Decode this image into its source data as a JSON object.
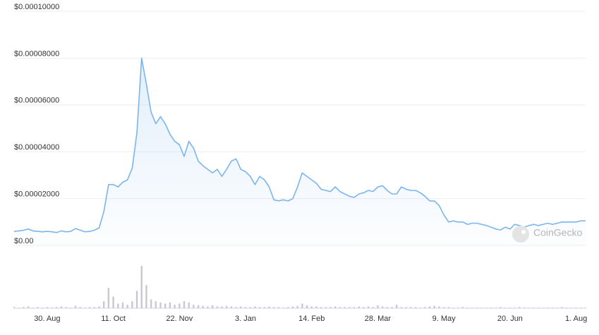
{
  "chart_data": {
    "type": "area",
    "watermark": "CoinGecko",
    "categories": [
      null,
      null,
      null,
      null,
      null,
      null,
      null,
      "30. Aug",
      null,
      null,
      null,
      null,
      null,
      null,
      null,
      null,
      null,
      null,
      null,
      null,
      null,
      "11. Oct",
      null,
      null,
      null,
      null,
      null,
      null,
      null,
      null,
      null,
      null,
      null,
      null,
      null,
      "22. Nov",
      null,
      null,
      null,
      null,
      null,
      null,
      null,
      null,
      null,
      null,
      null,
      null,
      null,
      "3. Jan",
      null,
      null,
      null,
      null,
      null,
      null,
      null,
      null,
      null,
      null,
      null,
      null,
      null,
      "14. Feb",
      null,
      null,
      null,
      null,
      null,
      null,
      null,
      null,
      null,
      null,
      null,
      null,
      null,
      "28. Mar",
      null,
      null,
      null,
      null,
      null,
      null,
      null,
      null,
      null,
      null,
      null,
      null,
      null,
      "9. May",
      null,
      null,
      null,
      null,
      null,
      null,
      null,
      null,
      null,
      null,
      null,
      null,
      null,
      "20. Jun",
      null,
      null,
      null,
      null,
      null,
      null,
      null,
      null,
      null,
      null,
      null,
      null,
      null,
      "1. Aug",
      null,
      null
    ],
    "series": [
      {
        "type": "area",
        "color": "#7cb5ec",
        "values": [
          6e-06,
          6.2e-06,
          6.5e-06,
          7e-06,
          6.2e-06,
          6e-06,
          5.8e-06,
          6e-06,
          5.8e-06,
          5.5e-06,
          6.2e-06,
          5.8e-06,
          6e-06,
          7.2e-06,
          6.5e-06,
          5.8e-06,
          6e-06,
          6.5e-06,
          7.5e-06,
          1.45e-05,
          2.6e-05,
          2.6e-05,
          2.5e-05,
          2.7e-05,
          2.8e-05,
          3.3e-05,
          4.8e-05,
          8e-05,
          6.9e-05,
          5.7e-05,
          5.2e-05,
          5.5e-05,
          5.2e-05,
          4.75e-05,
          4.45e-05,
          4.3e-05,
          3.8e-05,
          4.45e-05,
          4.15e-05,
          3.6e-05,
          3.4e-05,
          3.25e-05,
          3.1e-05,
          3.25e-05,
          2.95e-05,
          3.25e-05,
          3.6e-05,
          3.7e-05,
          3.25e-05,
          3.15e-05,
          2.95e-05,
          2.6e-05,
          2.95e-05,
          2.8e-05,
          2.5e-05,
          1.95e-05,
          1.9e-05,
          1.95e-05,
          1.9e-05,
          2e-05,
          2.5e-05,
          3.1e-05,
          2.95e-05,
          2.8e-05,
          2.65e-05,
          2.4e-05,
          2.35e-05,
          2.3e-05,
          2.5e-05,
          2.3e-05,
          2.2e-05,
          2.1e-05,
          2.05e-05,
          2.2e-05,
          2.25e-05,
          2.35e-05,
          2.3e-05,
          2.5e-05,
          2.55e-05,
          2.35e-05,
          2.2e-05,
          2.2e-05,
          2.5e-05,
          2.4e-05,
          2.35e-05,
          2.35e-05,
          2.25e-05,
          2.1e-05,
          1.9e-05,
          1.9e-05,
          1.7e-05,
          1.3e-05,
          1e-05,
          1.05e-05,
          1e-05,
          1e-05,
          9e-06,
          9.5e-06,
          9.5e-06,
          9e-06,
          8.5e-06,
          7.8e-06,
          7e-06,
          6.6e-06,
          7.8e-06,
          7e-06,
          9e-06,
          8.5e-06,
          7.8e-06,
          8.5e-06,
          9e-06,
          8.5e-06,
          9e-06,
          9.5e-06,
          9e-06,
          9.5e-06,
          1e-05,
          1e-05,
          1e-05,
          1e-05,
          1.05e-05,
          1.05e-05
        ]
      },
      {
        "type": "bar",
        "axis": "y2",
        "color": "#c8c8d0",
        "values": [
          2,
          1,
          2,
          3,
          1,
          2,
          1,
          2,
          1,
          2,
          3,
          2,
          1,
          4,
          2,
          1,
          2,
          2,
          3,
          12,
          35,
          20,
          8,
          10,
          6,
          12,
          30,
          73,
          40,
          15,
          12,
          10,
          8,
          10,
          6,
          8,
          12,
          10,
          6,
          5,
          4,
          3,
          5,
          3,
          3,
          4,
          3,
          2,
          3,
          2,
          2,
          3,
          2,
          2,
          3,
          2,
          2,
          1,
          2,
          3,
          4,
          8,
          5,
          3,
          3,
          2,
          2,
          2,
          3,
          2,
          2,
          2,
          2,
          3,
          2,
          3,
          2,
          5,
          3,
          2,
          2,
          6,
          2,
          2,
          2,
          2,
          1,
          2,
          3,
          4,
          3,
          2,
          2,
          1,
          1,
          2,
          1,
          1,
          1,
          1,
          1,
          1,
          1,
          2,
          1,
          1,
          1,
          2,
          1,
          1,
          1,
          1,
          1,
          1,
          1,
          1,
          2,
          1,
          1,
          1,
          1,
          1
        ]
      }
    ],
    "ylim": [
      0,
      0.0001
    ],
    "yticks": [
      {
        "value": 0,
        "label": "$0.00"
      },
      {
        "value": 2e-05,
        "label": "$0.00002000"
      },
      {
        "value": 4e-05,
        "label": "$0.00004000"
      },
      {
        "value": 6e-05,
        "label": "$0.00006000"
      },
      {
        "value": 8e-05,
        "label": "$0.00008000"
      },
      {
        "value": 0.0001,
        "label": "$0.00010000"
      }
    ],
    "y2lim": [
      0,
      100
    ],
    "grid": true
  }
}
